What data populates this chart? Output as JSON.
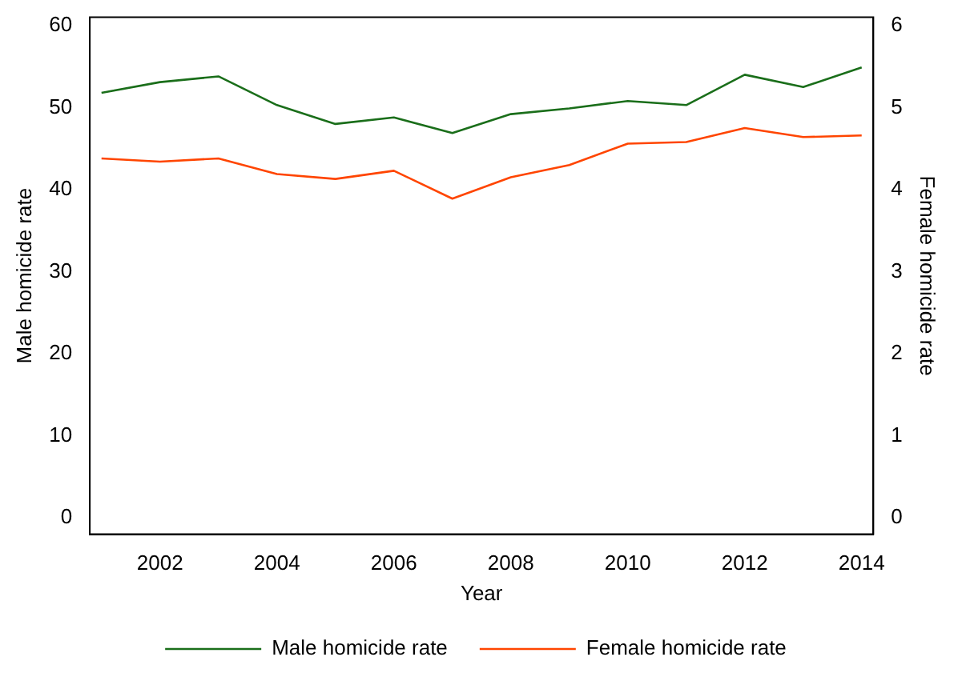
{
  "chart_data": {
    "type": "line",
    "xlabel": "Year",
    "ylabel": "Male homicide rate",
    "y2label": "Female homicide rate",
    "x": [
      2001,
      2002,
      2003,
      2004,
      2005,
      2006,
      2007,
      2008,
      2009,
      2010,
      2011,
      2012,
      2013,
      2014
    ],
    "series": [
      {
        "name": "Male homicide rate",
        "color": "#1a6e1a",
        "values": [
          51.8,
          53.1,
          53.8,
          50.3,
          48.0,
          48.8,
          46.9,
          49.2,
          49.9,
          50.8,
          50.3,
          54.0,
          52.5,
          54.9
        ]
      },
      {
        "name": "Female homicide rate",
        "color": "#ff4500",
        "axis": "y2",
        "values": [
          4.38,
          4.34,
          4.38,
          4.19,
          4.13,
          4.23,
          3.89,
          4.15,
          4.3,
          4.56,
          4.58,
          4.75,
          4.64,
          4.66
        ]
      }
    ],
    "xlim": [
      2000.8,
      2014.2
    ],
    "xticks": [
      2002,
      2004,
      2006,
      2008,
      2010,
      2012,
      2014
    ],
    "ylim": [
      -2,
      61
    ],
    "yticks": [
      0,
      10,
      20,
      30,
      40,
      50,
      60
    ],
    "y2lim": [
      -0.2,
      6.1
    ],
    "y2ticks": [
      0,
      1,
      2,
      3,
      4,
      5,
      6
    ],
    "grid": false,
    "legend": "bottom",
    "marker": "none",
    "line_style": "solid"
  }
}
